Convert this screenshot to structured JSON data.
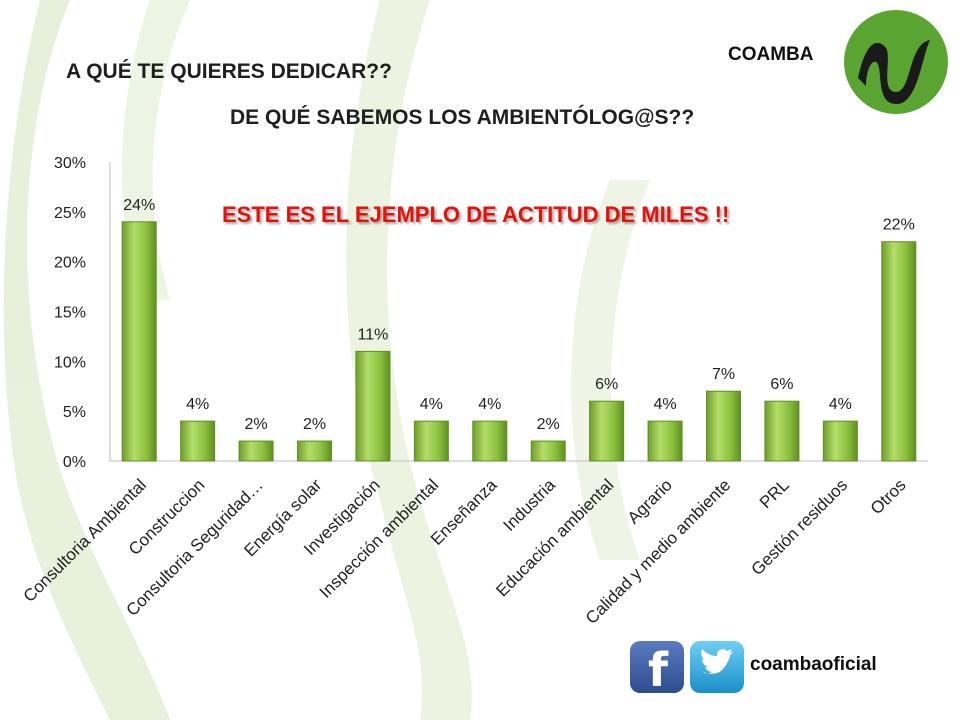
{
  "header": {
    "title": "A QUÉ TE QUIERES DEDICAR??",
    "subtitle": "DE QUÉ SABEMOS LOS AMBIENTÓLOG@S??",
    "brand": "COAMBA",
    "callout": "ESTE ES EL EJEMPLO DE ACTITUD DE MILES !!"
  },
  "footer": {
    "social_name": "coambaoficial"
  },
  "colors": {
    "bar": "#8cc13f",
    "bar_light": "#b3dd6a",
    "bar_dark": "#5f8f22",
    "callout": "#e3120b",
    "logo_green": "#5aa532"
  },
  "chart_data": {
    "type": "bar",
    "categories": [
      "Consultoria Ambiental",
      "Construccion",
      "Consultoria Seguridad…",
      "Energía solar",
      "Investigación",
      "Inspección ambiental",
      "Enseñanza",
      "Industria",
      "Educación ambiental",
      "Agrario",
      "Calidad y medio ambiente",
      "PRL",
      "Gestión residuos",
      "Otros"
    ],
    "values": [
      24,
      4,
      2,
      2,
      11,
      4,
      4,
      2,
      6,
      4,
      7,
      6,
      4,
      22
    ],
    "data_labels": [
      "24%",
      "4%",
      "2%",
      "2%",
      "11%",
      "4%",
      "4%",
      "2%",
      "6%",
      "4%",
      "7%",
      "6%",
      "4%",
      "22%"
    ],
    "yticks": [
      "0%",
      "5%",
      "10%",
      "15%",
      "20%",
      "25%",
      "30%"
    ],
    "ylim": [
      0,
      30
    ],
    "grid": false,
    "legend": "none"
  }
}
